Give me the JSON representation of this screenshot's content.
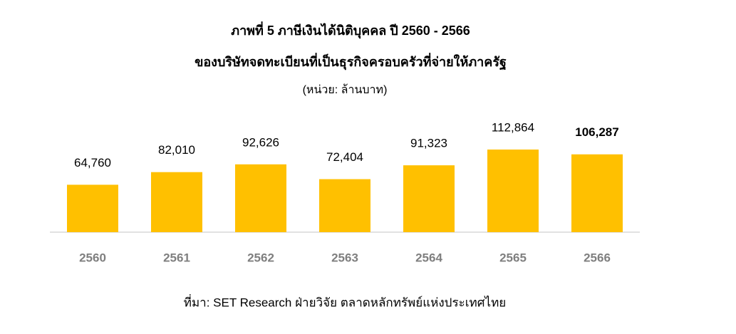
{
  "chart_data": {
    "type": "bar",
    "title": "ภาพที่ 5 ภาษีเงินได้นิติบุคคล ปี 2560 - 2566",
    "subtitle": "ของบริษัทจดทะเบียนที่เป็นธุรกิจครอบครัวที่จ่ายให้ภาครัฐ",
    "unit": "(หน่วย: ล้านบาท)",
    "categories": [
      "2560",
      "2561",
      "2562",
      "2563",
      "2564",
      "2565",
      "2566"
    ],
    "values": [
      64760,
      82010,
      92626,
      72404,
      91323,
      112864,
      106287
    ],
    "value_labels": [
      "64,760",
      "82,010",
      "92,626",
      "72,404",
      "91,323",
      "112,864",
      "106,287"
    ],
    "color": "#ffc000",
    "source": "ที่มา: SET Research ฝ่ายวิจัย ตลาดหลักทรัพย์แห่งประเทศไทย"
  }
}
